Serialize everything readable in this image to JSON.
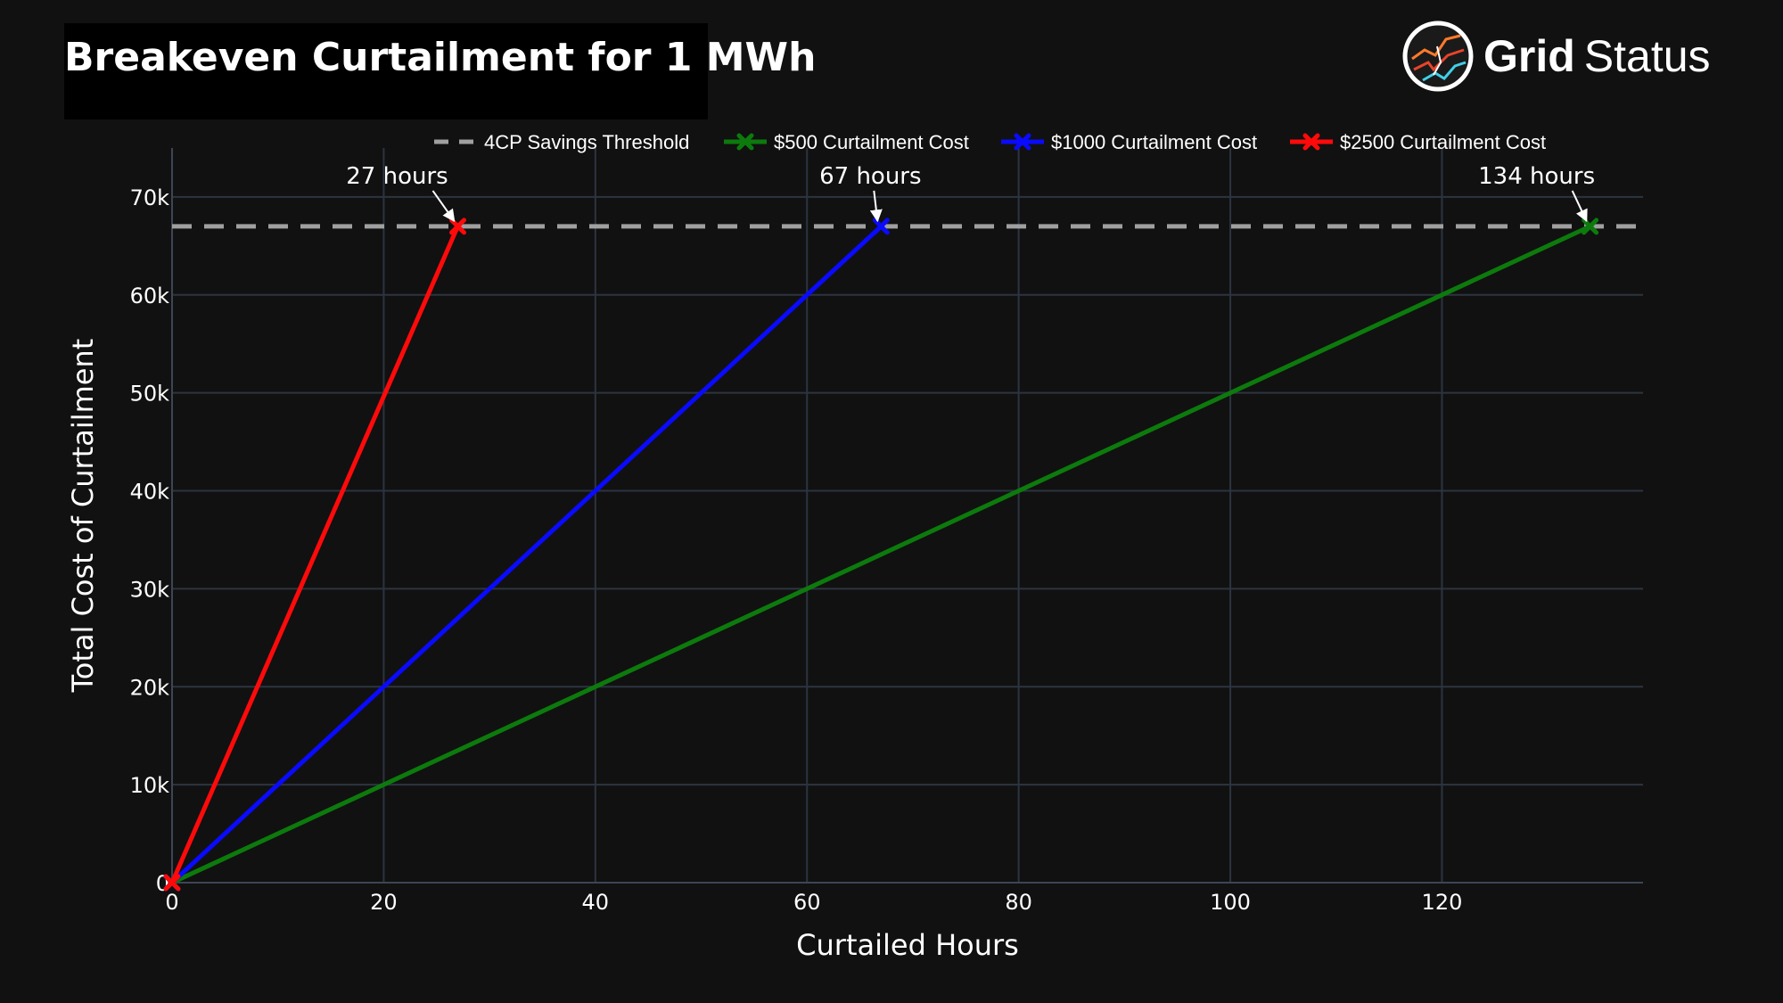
{
  "header": {
    "title": "Breakeven Curtailment for 1 MWh"
  },
  "brand": {
    "name_bold": "Grid",
    "name_light": "Status",
    "logo_icon": "grid-status-logo-icon"
  },
  "chart_data": {
    "type": "line",
    "title": "Breakeven Curtailment for 1 MWh",
    "xlabel": "Curtailed Hours",
    "ylabel": "Total Cost of Curtailment",
    "xlim": [
      0,
      139
    ],
    "ylim": [
      0,
      75000
    ],
    "x_ticks": [
      0,
      20,
      40,
      60,
      80,
      100,
      120
    ],
    "y_ticks": [
      0,
      10000,
      20000,
      30000,
      40000,
      50000,
      60000,
      70000
    ],
    "y_tick_labels": [
      "0",
      "10k",
      "20k",
      "30k",
      "40k",
      "50k",
      "60k",
      "70k"
    ],
    "grid": true,
    "legend_position": "top",
    "threshold": {
      "name": "4CP Savings Threshold",
      "y": 67000,
      "color": "#a0a0a0",
      "dash": true
    },
    "series": [
      {
        "name": "$500 Curtailment Cost",
        "color": "#0c7a0c",
        "x": [
          0,
          134
        ],
        "y": [
          0,
          67000
        ]
      },
      {
        "name": "$1000 Curtailment Cost",
        "color": "#0a0aff",
        "x": [
          0,
          67
        ],
        "y": [
          0,
          67000
        ]
      },
      {
        "name": "$2500 Curtailment Cost",
        "color": "#ff0a0a",
        "x": [
          0,
          27
        ],
        "y": [
          0,
          67000
        ]
      }
    ],
    "annotations": [
      {
        "text": "27 hours",
        "x": 27,
        "y": 67000,
        "dx": -68,
        "dy": -42
      },
      {
        "text": "67 hours",
        "x": 67,
        "y": 67000,
        "dx": -12,
        "dy": -42
      },
      {
        "text": "134 hours",
        "x": 134,
        "y": 67000,
        "dx": -60,
        "dy": -42
      }
    ]
  }
}
